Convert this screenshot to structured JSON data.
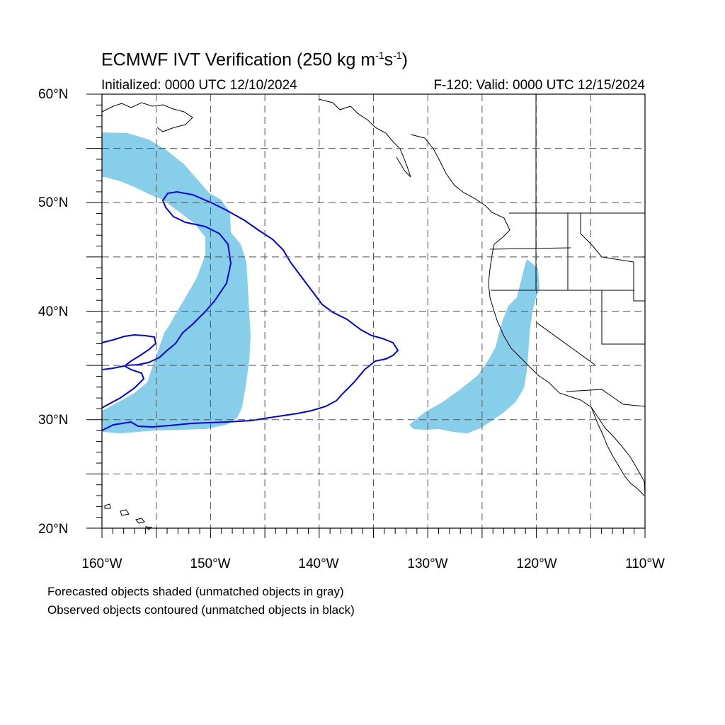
{
  "header": {
    "title_main": "ECMWF IVT Verification (250 kg m",
    "title_exp1": "-1",
    "title_mid": "s",
    "title_exp2": "-1",
    "title_end": ")",
    "initialized": "Initialized: 0000 UTC 12/10/2024",
    "valid": "F-120: Valid: 0000 UTC 12/15/2024"
  },
  "map": {
    "projection": "cylindrical equidistant",
    "lon_range": [
      -160,
      -110
    ],
    "lat_range": [
      20,
      60
    ],
    "grid": "dashed, every 5 degrees",
    "lat_labels": [
      "60°N",
      "50°N",
      "40°N",
      "30°N",
      "20°N"
    ],
    "lon_labels": [
      "160°W",
      "150°W",
      "140°W",
      "130°W",
      "120°W",
      "110°W"
    ],
    "colors": {
      "forecast_fill": "#87CEEB",
      "observed_contour": "#0000EE",
      "coastline": "#000000",
      "grid": "#555555"
    }
  },
  "legend": {
    "line1": "Forecasted objects shaded (unmatched objects in gray)",
    "line2": "Observed objects contoured (unmatched objects in black)"
  }
}
